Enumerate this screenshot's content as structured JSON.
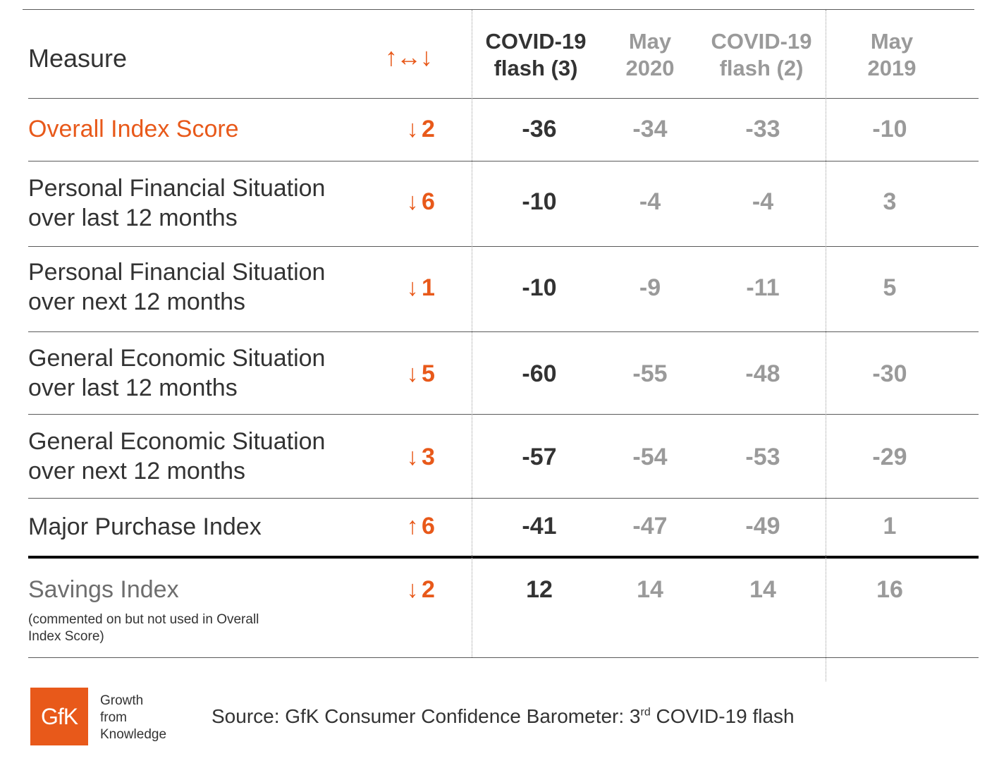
{
  "chart_data": {
    "type": "table",
    "columns": {
      "measure": "Measure",
      "trend": "↑↔↓",
      "c1": [
        "COVID-19",
        "flash (3)"
      ],
      "c2": [
        "May",
        "2020"
      ],
      "c3": [
        "COVID-19",
        "flash (2)"
      ],
      "c4": [
        "May",
        "2019"
      ]
    },
    "rows": [
      {
        "label": [
          "Overall Index Score"
        ],
        "arrow": "↓",
        "change": "2",
        "values": [
          "-36",
          "-34",
          "-33",
          "-10"
        ]
      },
      {
        "label": [
          "Personal Financial Situation",
          "over last 12 months"
        ],
        "arrow": "↓",
        "change": "6",
        "values": [
          "-10",
          "-4",
          "-4",
          "3"
        ]
      },
      {
        "label": [
          "Personal Financial Situation",
          "over next 12 months"
        ],
        "arrow": "↓",
        "change": "1",
        "values": [
          "-10",
          "-9",
          "-11",
          "5"
        ]
      },
      {
        "label": [
          "General Economic Situation",
          "over last 12 months"
        ],
        "arrow": "↓",
        "change": "5",
        "values": [
          "-60",
          "-55",
          "-48",
          "-30"
        ]
      },
      {
        "label": [
          "General Economic Situation",
          "over next 12 months"
        ],
        "arrow": "↓",
        "change": "3",
        "values": [
          "-57",
          "-54",
          "-53",
          "-29"
        ]
      },
      {
        "label": [
          "Major Purchase Index"
        ],
        "arrow": "↑",
        "change": "6",
        "values": [
          "-41",
          "-47",
          "-49",
          "1"
        ]
      },
      {
        "label": [
          "Savings Index"
        ],
        "note": "(commented on but not used in Overall Index Score)",
        "arrow": "↓",
        "change": "2",
        "values": [
          "12",
          "14",
          "14",
          "16"
        ]
      }
    ]
  },
  "footer": {
    "logo_text": "GfK",
    "tagline": [
      "Growth",
      "from",
      "Knowledge"
    ],
    "source_prefix": "Source: GfK Consumer Confidence Barometer: 3",
    "source_sup": "rd",
    "source_suffix": " COVID-19 flash"
  },
  "colors": {
    "accent": "#e8591a",
    "primary_text": "#333333",
    "secondary_text": "#9a9a9a"
  }
}
